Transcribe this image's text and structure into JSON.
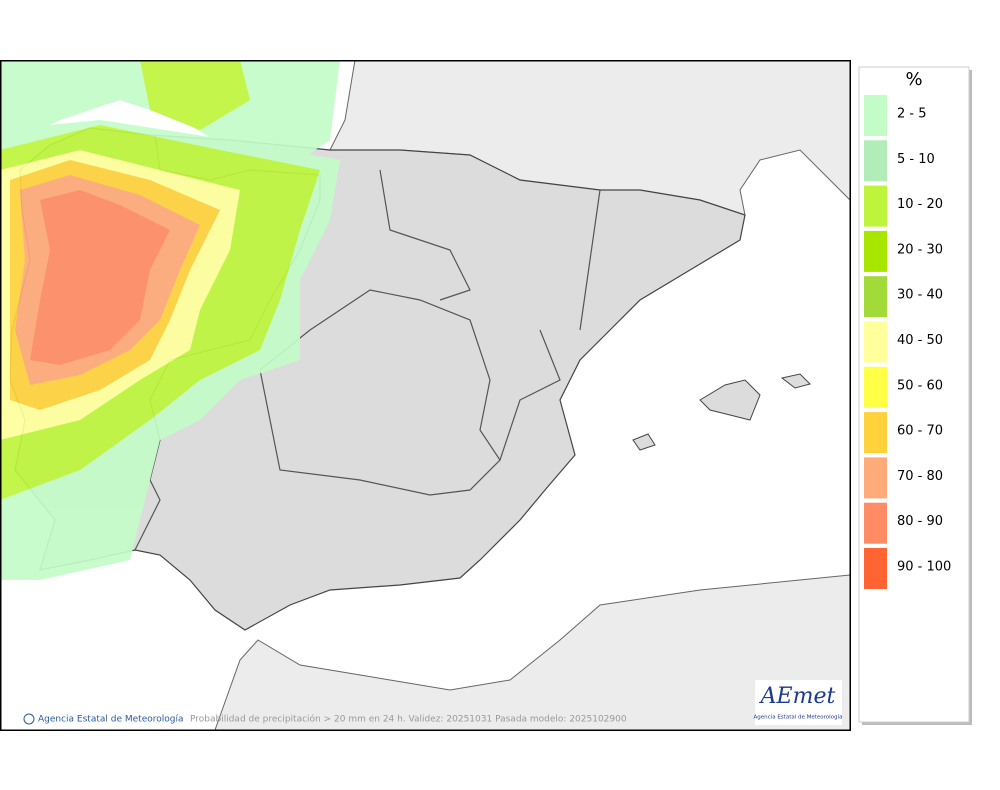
{
  "legend": {
    "title": "%",
    "items": [
      {
        "label": "2 - 5",
        "color": "#c4fcc8"
      },
      {
        "label": "5 - 10",
        "color": "#b2ecb8"
      },
      {
        "label": "10 - 20",
        "color": "#bef53c"
      },
      {
        "label": "20 - 30",
        "color": "#a8e600"
      },
      {
        "label": "30 - 40",
        "color": "#a2da3a"
      },
      {
        "label": "40 - 50",
        "color": "#ffff9c"
      },
      {
        "label": "50 - 60",
        "color": "#ffff46"
      },
      {
        "label": "60 - 70",
        "color": "#ffd23c"
      },
      {
        "label": "70 - 80",
        "color": "#ffaa78"
      },
      {
        "label": "80 - 90",
        "color": "#ff8c64"
      },
      {
        "label": "90 - 100",
        "color": "#ff6432"
      }
    ]
  },
  "footer": {
    "agency": "Agencia Estatal de Meteorología",
    "caption": "Probabilidad de precipitación > 20 mm en 24 h. Validez: 20251031 Pasada modelo: 2025102900"
  },
  "logo": {
    "name": "AEmet",
    "subtitle": "Agencia Estatal de Meteorología"
  }
}
